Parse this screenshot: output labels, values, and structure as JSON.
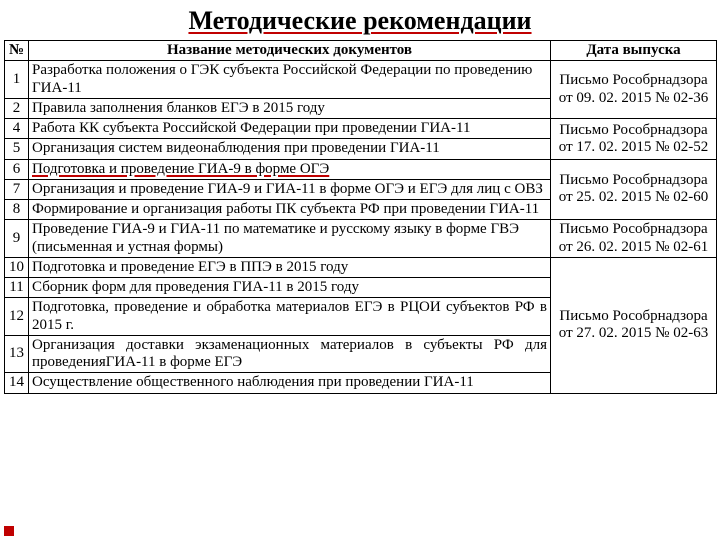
{
  "title": "Методические рекомендации",
  "headers": {
    "num": "№",
    "doc": "Название методических документов",
    "date": "Дата выпуска"
  },
  "groups": [
    {
      "rows": [
        {
          "num": "1",
          "doc": "Разработка положения о ГЭК субъекта Российской Федерации по проведению ГИА-11"
        },
        {
          "num": "2",
          "doc": "Правила заполнения бланков ЕГЭ в 2015 году"
        }
      ],
      "date": "Письмо Рособрнадзора от 09. 02. 2015 № 02-36"
    },
    {
      "rows": [
        {
          "num": "4",
          "doc": "Работа КК субъекта Российской Федерации при проведении ГИА-11"
        },
        {
          "num": "5",
          "doc": "Организация систем видеонаблюдения при проведении ГИА-11"
        }
      ],
      "date": "Письмо Рособрнадзора от 17. 02. 2015 № 02-52"
    },
    {
      "rows": [
        {
          "num": "6",
          "doc": "Подготовка и проведение ГИА-9 в форме ОГЭ",
          "underline": true
        },
        {
          "num": "7",
          "doc": "Организация и проведение ГИА-9 и ГИА-11 в форме ОГЭ и ЕГЭ для лиц с ОВЗ"
        },
        {
          "num": "8",
          "doc": "Формирование и организация работы ПК субъекта РФ при проведении ГИА-11"
        }
      ],
      "date": "Письмо Рособрнадзора от 25. 02. 2015 № 02-60"
    },
    {
      "rows": [
        {
          "num": "9",
          "doc": "Проведение ГИА-9 и ГИА-11 по математике и русскому языку в форме ГВЭ (письменная и устная формы)"
        }
      ],
      "date": "Письмо Рособрнадзора от 26. 02. 2015 № 02-61"
    },
    {
      "rows": [
        {
          "num": "10",
          "doc": "Подготовка и проведение ЕГЭ в ППЭ в 2015 году"
        },
        {
          "num": "11",
          "doc": "Сборник форм для проведения ГИА-11 в 2015 году"
        },
        {
          "num": "12",
          "doc": "Подготовка, проведение и обработка материалов ЕГЭ в РЦОИ субъектов РФ в 2015 г.",
          "justify": true
        },
        {
          "num": "13",
          "doc": "Организация доставки экзаменационных материалов в субъекты РФ для проведенияГИА-11 в форме ЕГЭ",
          "justify": true
        },
        {
          "num": "14",
          "doc": "Осуществление общественного наблюдения при проведении ГИА-11",
          "justify": true
        }
      ],
      "date": "Письмо Рособрнадзора от 27. 02. 2015 № 02-63"
    }
  ]
}
